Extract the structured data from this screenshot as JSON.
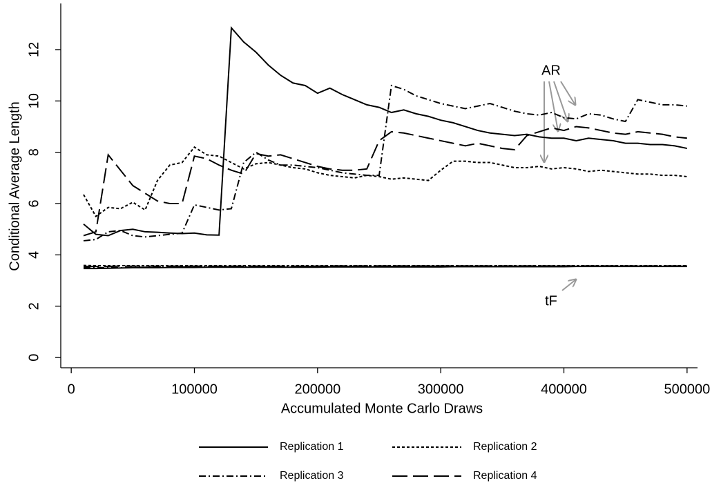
{
  "chart_data": {
    "type": "line",
    "x_label": "Accumulated Monte Carlo Draws",
    "y_label": "Conditional Average Length",
    "annotations": [
      "AR",
      "tF"
    ],
    "x": [
      10000,
      20000,
      30000,
      40000,
      50000,
      60000,
      70000,
      80000,
      90000,
      100000,
      110000,
      120000,
      130000,
      140000,
      150000,
      160000,
      170000,
      180000,
      190000,
      200000,
      210000,
      220000,
      230000,
      240000,
      250000,
      260000,
      270000,
      280000,
      290000,
      300000,
      310000,
      320000,
      330000,
      340000,
      350000,
      360000,
      370000,
      380000,
      390000,
      400000,
      410000,
      420000,
      430000,
      440000,
      450000,
      460000,
      470000,
      480000,
      490000,
      500000
    ],
    "xlim": [
      -8500,
      508500
    ],
    "xticks": [
      0,
      100000,
      200000,
      300000,
      400000,
      500000
    ],
    "ylim": [
      -0.4,
      13.8
    ],
    "yticks": [
      0,
      2,
      4,
      6,
      8,
      10,
      12
    ],
    "series": [
      {
        "name": "Replication 1",
        "color": "#000000",
        "dash": "none",
        "values": [
          5.2,
          4.8,
          4.75,
          4.95,
          5.0,
          4.9,
          4.88,
          4.85,
          4.83,
          4.85,
          4.78,
          4.77,
          12.85,
          12.3,
          11.9,
          11.4,
          11.0,
          10.7,
          10.6,
          10.3,
          10.5,
          10.25,
          10.05,
          9.85,
          9.75,
          9.55,
          9.65,
          9.5,
          9.4,
          9.25,
          9.15,
          9.0,
          8.85,
          8.75,
          8.7,
          8.65,
          8.7,
          8.6,
          8.55,
          8.55,
          8.45,
          8.55,
          8.5,
          8.45,
          8.35,
          8.35,
          8.3,
          8.3,
          8.25,
          8.15
        ],
        "tf_values": [
          3.47,
          3.47,
          3.48,
          3.49,
          3.5,
          3.5,
          3.5,
          3.51,
          3.51,
          3.51,
          3.52,
          3.52,
          3.52,
          3.52,
          3.52,
          3.52,
          3.52,
          3.52,
          3.52,
          3.52,
          3.53,
          3.53,
          3.53,
          3.53,
          3.53,
          3.53,
          3.53,
          3.53,
          3.53,
          3.53,
          3.54,
          3.54,
          3.54,
          3.54,
          3.54,
          3.54,
          3.54,
          3.54,
          3.54,
          3.54,
          3.55,
          3.55,
          3.55,
          3.55,
          3.55,
          3.55,
          3.55,
          3.55,
          3.55,
          3.55
        ]
      },
      {
        "name": "Replication 2",
        "color": "#000000",
        "dash": "4,3",
        "values": [
          6.35,
          5.5,
          5.85,
          5.8,
          6.05,
          5.75,
          6.9,
          7.5,
          7.6,
          8.2,
          7.9,
          7.85,
          7.6,
          7.35,
          7.55,
          7.6,
          7.5,
          7.4,
          7.35,
          7.2,
          7.1,
          7.05,
          7.0,
          7.1,
          7.05,
          6.95,
          7.0,
          6.95,
          6.9,
          7.3,
          7.65,
          7.65,
          7.6,
          7.6,
          7.5,
          7.4,
          7.4,
          7.45,
          7.35,
          7.4,
          7.35,
          7.25,
          7.3,
          7.25,
          7.2,
          7.15,
          7.15,
          7.1,
          7.1,
          7.05
        ],
        "tf_values": [
          3.59,
          3.58,
          3.58,
          3.58,
          3.58,
          3.58,
          3.58,
          3.58,
          3.58,
          3.58,
          3.58,
          3.58,
          3.58,
          3.58,
          3.58,
          3.58,
          3.58,
          3.58,
          3.58,
          3.58,
          3.58,
          3.58,
          3.58,
          3.58,
          3.58,
          3.58,
          3.58,
          3.58,
          3.58,
          3.58,
          3.58,
          3.58,
          3.58,
          3.58,
          3.58,
          3.58,
          3.58,
          3.58,
          3.58,
          3.58,
          3.58,
          3.58,
          3.58,
          3.58,
          3.58,
          3.58,
          3.58,
          3.58,
          3.58,
          3.58
        ]
      },
      {
        "name": "Replication 3",
        "color": "#000000",
        "dash": "10,4,2,4",
        "values": [
          4.55,
          4.6,
          4.9,
          4.95,
          4.75,
          4.7,
          4.75,
          4.8,
          4.85,
          5.95,
          5.85,
          5.75,
          5.8,
          7.6,
          8.0,
          7.7,
          7.5,
          7.5,
          7.45,
          7.4,
          7.3,
          7.2,
          7.15,
          7.1,
          7.1,
          10.6,
          10.45,
          10.2,
          10.05,
          9.9,
          9.8,
          9.7,
          9.8,
          9.9,
          9.75,
          9.6,
          9.5,
          9.45,
          9.55,
          9.35,
          9.3,
          9.5,
          9.45,
          9.3,
          9.2,
          10.05,
          9.95,
          9.85,
          9.85,
          9.8
        ],
        "tf_values": [
          3.52,
          3.51,
          3.5,
          3.5,
          3.51,
          3.52,
          3.52,
          3.53,
          3.53,
          3.53,
          3.54,
          3.54,
          3.54,
          3.54,
          3.54,
          3.54,
          3.55,
          3.55,
          3.55,
          3.55,
          3.55,
          3.55,
          3.55,
          3.55,
          3.55,
          3.55,
          3.56,
          3.56,
          3.56,
          3.56,
          3.56,
          3.56,
          3.56,
          3.56,
          3.56,
          3.56,
          3.56,
          3.56,
          3.56,
          3.56,
          3.56,
          3.56,
          3.56,
          3.56,
          3.56,
          3.56,
          3.56,
          3.56,
          3.56,
          3.56
        ]
      },
      {
        "name": "Replication 4",
        "color": "#000000",
        "dash": "22,8",
        "values": [
          4.75,
          4.9,
          7.9,
          7.3,
          6.7,
          6.4,
          6.1,
          6.0,
          6.0,
          7.85,
          7.75,
          7.5,
          7.3,
          7.15,
          7.95,
          7.85,
          7.9,
          7.75,
          7.6,
          7.45,
          7.35,
          7.3,
          7.3,
          7.35,
          8.45,
          8.8,
          8.75,
          8.65,
          8.55,
          8.45,
          8.35,
          8.25,
          8.35,
          8.25,
          8.15,
          8.1,
          8.65,
          8.8,
          8.95,
          8.85,
          9.0,
          8.95,
          8.85,
          8.75,
          8.7,
          8.8,
          8.75,
          8.7,
          8.6,
          8.55
        ],
        "tf_values": [
          3.55,
          3.55,
          3.55,
          3.56,
          3.56,
          3.56,
          3.56,
          3.56,
          3.56,
          3.56,
          3.56,
          3.56,
          3.56,
          3.56,
          3.56,
          3.56,
          3.56,
          3.56,
          3.56,
          3.56,
          3.57,
          3.57,
          3.57,
          3.57,
          3.57,
          3.57,
          3.57,
          3.57,
          3.57,
          3.57,
          3.57,
          3.57,
          3.57,
          3.57,
          3.57,
          3.57,
          3.57,
          3.57,
          3.57,
          3.57,
          3.57,
          3.57,
          3.57,
          3.57,
          3.57,
          3.57,
          3.57,
          3.57,
          3.57,
          3.57
        ]
      }
    ]
  }
}
